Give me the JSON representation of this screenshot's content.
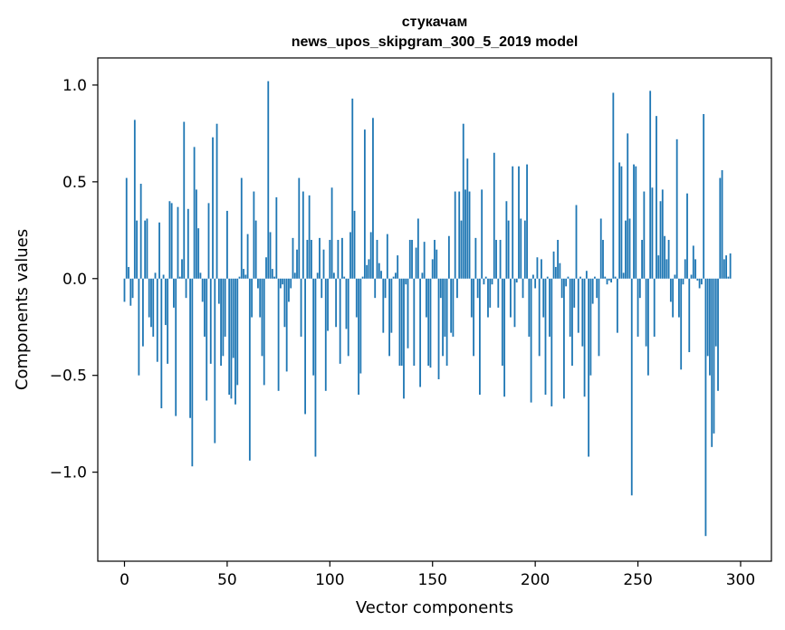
{
  "chart_data": {
    "type": "bar",
    "title": [
      "стукачам",
      "news_upos_skipgram_300_5_2019 model"
    ],
    "xlabel": "Vector components",
    "ylabel": "Components values",
    "xlim": [
      -13,
      315
    ],
    "ylim": [
      -1.46,
      1.14
    ],
    "xticks": [
      0,
      50,
      100,
      150,
      200,
      250,
      300
    ],
    "xtick_labels": [
      "0",
      "50",
      "100",
      "150",
      "200",
      "250",
      "300"
    ],
    "yticks": [
      1.0,
      0.5,
      0.0,
      -0.5,
      -1.0
    ],
    "ytick_labels": [
      "1.0",
      "0.5",
      "0.0",
      "−0.5",
      "−1.0"
    ],
    "bar_color": "#1f77b4",
    "values": [
      -0.12,
      0.52,
      0.06,
      -0.14,
      -0.1,
      0.82,
      0.3,
      -0.5,
      0.49,
      -0.35,
      0.3,
      0.31,
      -0.2,
      -0.25,
      -0.3,
      0.03,
      -0.43,
      0.29,
      -0.67,
      0.02,
      -0.24,
      -0.44,
      0.4,
      0.39,
      -0.15,
      -0.71,
      0.37,
      0.01,
      0.1,
      0.81,
      -0.1,
      0.36,
      -0.72,
      -0.97,
      0.68,
      0.46,
      0.26,
      0.03,
      -0.12,
      -0.3,
      -0.63,
      0.39,
      -0.44,
      0.73,
      -0.85,
      0.8,
      -0.13,
      -0.45,
      -0.4,
      -0.3,
      0.35,
      -0.6,
      -0.62,
      -0.41,
      -0.65,
      -0.55,
      0.01,
      0.52,
      0.05,
      0.02,
      0.23,
      -0.94,
      -0.2,
      0.45,
      0.3,
      -0.05,
      -0.2,
      -0.4,
      -0.55,
      0.11,
      1.02,
      0.24,
      0.05,
      0.01,
      0.42,
      -0.58,
      -0.05,
      -0.03,
      -0.25,
      -0.48,
      -0.12,
      -0.05,
      0.21,
      0.03,
      0.15,
      0.52,
      -0.3,
      0.45,
      -0.7,
      0.2,
      0.43,
      0.2,
      -0.5,
      -0.92,
      0.03,
      0.21,
      -0.1,
      0.15,
      -0.58,
      -0.27,
      0.2,
      0.47,
      0.03,
      -0.25,
      0.2,
      -0.44,
      0.21,
      0.01,
      -0.26,
      -0.4,
      0.24,
      0.93,
      0.35,
      -0.2,
      -0.6,
      -0.49,
      0.01,
      0.77,
      0.07,
      0.1,
      0.24,
      0.83,
      -0.1,
      0.2,
      0.08,
      0.04,
      -0.28,
      -0.1,
      0.23,
      -0.4,
      -0.28,
      0.01,
      0.03,
      0.12,
      -0.45,
      -0.45,
      -0.62,
      -0.03,
      -0.36,
      0.2,
      0.2,
      -0.45,
      0.16,
      0.31,
      -0.56,
      0.03,
      0.19,
      -0.2,
      -0.45,
      -0.46,
      0.1,
      0.2,
      0.15,
      -0.52,
      -0.1,
      -0.4,
      -0.3,
      -0.45,
      0.22,
      -0.28,
      -0.3,
      0.45,
      -0.1,
      0.45,
      0.3,
      0.8,
      0.46,
      0.62,
      0.45,
      -0.2,
      -0.4,
      0.21,
      -0.1,
      -0.6,
      0.46,
      -0.03,
      0.01,
      -0.2,
      -0.15,
      -0.03,
      0.65,
      0.2,
      -0.15,
      0.2,
      -0.45,
      -0.61,
      0.4,
      0.3,
      -0.2,
      0.58,
      -0.25,
      -0.02,
      0.58,
      0.31,
      -0.1,
      0.3,
      0.59,
      -0.3,
      -0.64,
      0.02,
      -0.05,
      0.11,
      -0.4,
      0.1,
      -0.2,
      -0.6,
      0.01,
      -0.3,
      -0.66,
      0.14,
      0.06,
      0.2,
      0.08,
      -0.1,
      -0.62,
      -0.04,
      0.01,
      -0.3,
      -0.45,
      -0.15,
      0.38,
      -0.28,
      0.01,
      -0.35,
      -0.61,
      0.04,
      -0.92,
      -0.5,
      -0.13,
      0.01,
      -0.1,
      -0.4,
      0.31,
      0.2,
      0.01,
      -0.03,
      -0.01,
      -0.02,
      0.96,
      0.01,
      -0.28,
      0.6,
      0.58,
      0.03,
      0.3,
      0.75,
      0.31,
      -1.12,
      0.59,
      0.58,
      -0.3,
      -0.1,
      0.2,
      0.45,
      -0.35,
      -0.5,
      0.97,
      0.47,
      -0.3,
      0.84,
      0.12,
      0.4,
      0.46,
      0.22,
      0.1,
      0.2,
      -0.12,
      -0.2,
      0.02,
      0.72,
      -0.2,
      -0.47,
      -0.03,
      0.1,
      0.44,
      -0.38,
      0.02,
      0.17,
      0.1,
      -0.01,
      -0.05,
      -0.03,
      0.85,
      -1.33,
      -0.4,
      -0.5,
      -0.87,
      -0.8,
      -0.35,
      -0.58,
      0.52,
      0.56,
      0.1,
      0.12,
      0.01,
      0.13
    ]
  }
}
